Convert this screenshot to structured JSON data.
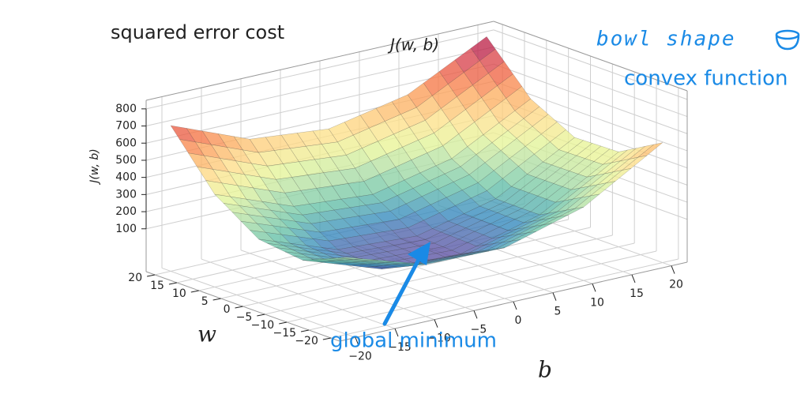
{
  "chart_data": {
    "type": "surface3d",
    "title": "squared error cost",
    "top_label": "J(w, b)",
    "zlabel": "J(w, b)",
    "xlabel": "w",
    "ylabel": "b",
    "w": [
      -20,
      -10,
      0,
      10,
      20
    ],
    "b": [
      -20,
      -10,
      0,
      10,
      20
    ],
    "z": [
      [
        300,
        154,
        146,
        279,
        550
      ],
      [
        191,
        35,
        18,
        141,
        404
      ],
      [
        221,
        56,
        30,
        143,
        396
      ],
      [
        391,
        216,
        181,
        285,
        529
      ],
      [
        700,
        516,
        471,
        566,
        800
      ]
    ],
    "wlim": [
      -22,
      22
    ],
    "blim": [
      -22,
      22
    ],
    "zlim": [
      -150,
      850
    ],
    "wticks": [
      {
        "value": -20,
        "label": "−20"
      },
      {
        "value": -15,
        "label": "−15"
      },
      {
        "value": -10,
        "label": "−10"
      },
      {
        "value": -5,
        "label": "−5"
      },
      0,
      5,
      10,
      15,
      20
    ],
    "bticks": [
      {
        "value": -20,
        "label": "−20"
      },
      {
        "value": -15,
        "label": "−15"
      },
      {
        "value": -10,
        "label": "−10"
      },
      {
        "value": -5,
        "label": "−5"
      },
      0,
      5,
      10,
      15,
      20
    ],
    "zticks": [
      100,
      200,
      300,
      400,
      500,
      600,
      700,
      800
    ],
    "colormap": [
      "#5e4fa2",
      "#3288bd",
      "#66c2a5",
      "#abdda4",
      "#e6f598",
      "#fee08b",
      "#fdae61",
      "#f46d43",
      "#d53e4f",
      "#9e0142"
    ],
    "grid": true,
    "annotations": [
      "bowl shape",
      "convex function",
      "global minimum"
    ]
  }
}
